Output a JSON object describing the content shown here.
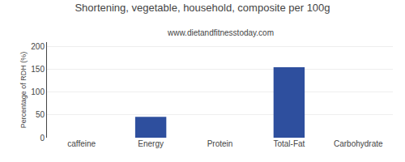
{
  "chart_data": {
    "type": "bar",
    "title": "Shortening, vegetable, household, composite per 100g",
    "subtitle": "www.dietandfitnesstoday.com",
    "categories": [
      "caffeine",
      "Energy",
      "Protein",
      "Total-Fat",
      "Carbohydrate"
    ],
    "values": [
      0,
      46,
      0,
      155,
      0
    ],
    "color": "#2e4f9e",
    "ylabel": "Percentage of RDH (%)",
    "ylim": [
      0,
      210
    ],
    "yticks": [
      0,
      50,
      100,
      150,
      200
    ],
    "grid": true
  }
}
